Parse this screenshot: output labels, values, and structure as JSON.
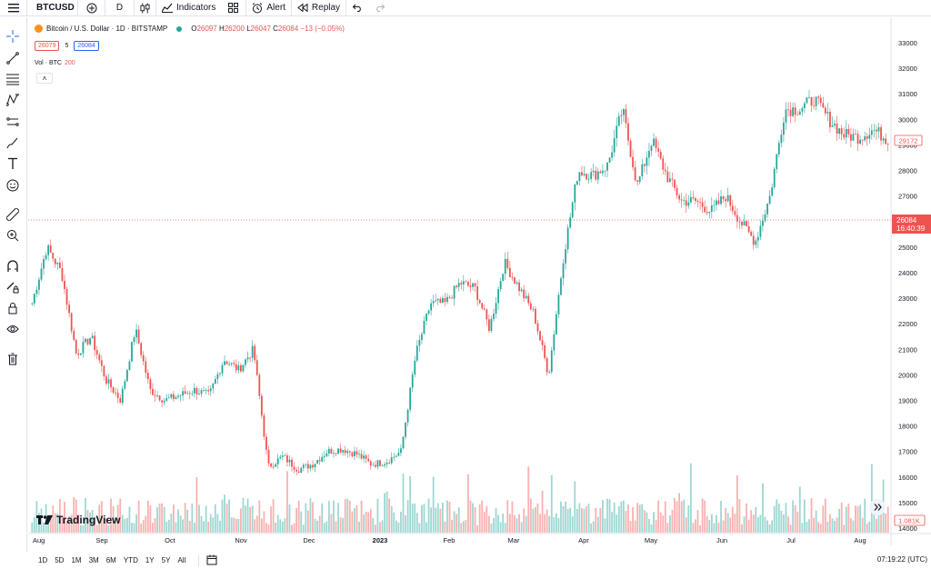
{
  "topbar": {
    "symbol": "BTCUSD",
    "interval": "D",
    "indicators_label": "Indicators",
    "alert_label": "Alert",
    "replay_label": "Replay"
  },
  "legend": {
    "title": "Bitcoin / U.S. Dollar · 1D · BITSTAMP",
    "o_label": "O",
    "o_value": "26097",
    "h_label": "H",
    "h_value": "26200",
    "l_label": "L",
    "l_value": "26047",
    "c_label": "C",
    "c_value": "26084",
    "change": "−13 (−0.05%)",
    "bid": "26079",
    "spread": "5",
    "ask": "26084",
    "vol_label": "Vol · BTC",
    "vol_value": "200",
    "collapse": "˄"
  },
  "price_axis": {
    "ticks": [
      "33000",
      "32000",
      "31000",
      "30000",
      "29000",
      "28000",
      "27000",
      "26000",
      "25000",
      "24000",
      "23000",
      "22000",
      "21000",
      "20000",
      "19000",
      "18000",
      "17000",
      "16000",
      "15000",
      "14000"
    ],
    "last_price_label": "26084",
    "countdown": "16:40:39",
    "marker_label": "29172",
    "volume_label": "1.081K"
  },
  "time_axis": {
    "labels": [
      "Aug",
      "Sep",
      "Oct",
      "Nov",
      "Dec",
      "2023",
      "Feb",
      "Mar",
      "Apr",
      "May",
      "Jun",
      "Jul",
      "Aug"
    ]
  },
  "bottombar": {
    "ranges": [
      "1D",
      "5D",
      "1M",
      "3M",
      "6M",
      "YTD",
      "1Y",
      "5Y",
      "All"
    ],
    "time": "07:19:22 (UTC)"
  },
  "brand": {
    "name": "TradingView"
  },
  "colors": {
    "up": "#26a69a",
    "down": "#ef5350",
    "accent": "#2962ff"
  },
  "chart_data": {
    "type": "candlestick",
    "ylim": [
      14000,
      33000
    ],
    "anchors": [
      {
        "x": "Aug",
        "y": 22800
      },
      {
        "x": "Aug",
        "y": 25000
      },
      {
        "x": "Aug",
        "y": 24000
      },
      {
        "x": "Aug",
        "y": 20800
      },
      {
        "x": "Aug",
        "y": 21500
      },
      {
        "x": "Sep",
        "y": 19800
      },
      {
        "x": "Sep",
        "y": 19000
      },
      {
        "x": "Sep",
        "y": 21800
      },
      {
        "x": "Sep",
        "y": 19400
      },
      {
        "x": "Sep",
        "y": 19000
      },
      {
        "x": "Oct",
        "y": 19200
      },
      {
        "x": "Oct",
        "y": 19400
      },
      {
        "x": "Oct",
        "y": 19200
      },
      {
        "x": "Oct",
        "y": 20600
      },
      {
        "x": "Oct",
        "y": 20200
      },
      {
        "x": "Nov",
        "y": 21000
      },
      {
        "x": "Nov",
        "y": 16400
      },
      {
        "x": "Nov",
        "y": 16800
      },
      {
        "x": "Nov",
        "y": 16300
      },
      {
        "x": "Nov",
        "y": 16500
      },
      {
        "x": "Dec",
        "y": 17000
      },
      {
        "x": "Dec",
        "y": 17100
      },
      {
        "x": "Dec",
        "y": 16900
      },
      {
        "x": "Dec",
        "y": 16500
      },
      {
        "x": "Dec",
        "y": 16600
      },
      {
        "x": "2023",
        "y": 17000
      },
      {
        "x": "2023",
        "y": 20800
      },
      {
        "x": "2023",
        "y": 22800
      },
      {
        "x": "2023",
        "y": 22800
      },
      {
        "x": "2023",
        "y": 23600
      },
      {
        "x": "Feb",
        "y": 23400
      },
      {
        "x": "Feb",
        "y": 21800
      },
      {
        "x": "Feb",
        "y": 24400
      },
      {
        "x": "Feb",
        "y": 23400
      },
      {
        "x": "Mar",
        "y": 22400
      },
      {
        "x": "Mar",
        "y": 20000
      },
      {
        "x": "Mar",
        "y": 24600
      },
      {
        "x": "Mar",
        "y": 28000
      },
      {
        "x": "Mar",
        "y": 27800
      },
      {
        "x": "Apr",
        "y": 28200
      },
      {
        "x": "Apr",
        "y": 30400
      },
      {
        "x": "Apr",
        "y": 27400
      },
      {
        "x": "Apr",
        "y": 29200
      },
      {
        "x": "May",
        "y": 27800
      },
      {
        "x": "May",
        "y": 26800
      },
      {
        "x": "May",
        "y": 26800
      },
      {
        "x": "May",
        "y": 26400
      },
      {
        "x": "Jun",
        "y": 27000
      },
      {
        "x": "Jun",
        "y": 26000
      },
      {
        "x": "Jun",
        "y": 25200
      },
      {
        "x": "Jun",
        "y": 27000
      },
      {
        "x": "Jun",
        "y": 30400
      },
      {
        "x": "Jul",
        "y": 30400
      },
      {
        "x": "Jul",
        "y": 30800
      },
      {
        "x": "Jul",
        "y": 30000
      },
      {
        "x": "Jul",
        "y": 29400
      },
      {
        "x": "Aug",
        "y": 29300
      },
      {
        "x": "Aug",
        "y": 29600
      },
      {
        "x": "Aug",
        "y": 29200
      }
    ],
    "last_price": 26084,
    "marker_price": 29172,
    "volume": {
      "unit": "BTC",
      "last": 200
    }
  }
}
